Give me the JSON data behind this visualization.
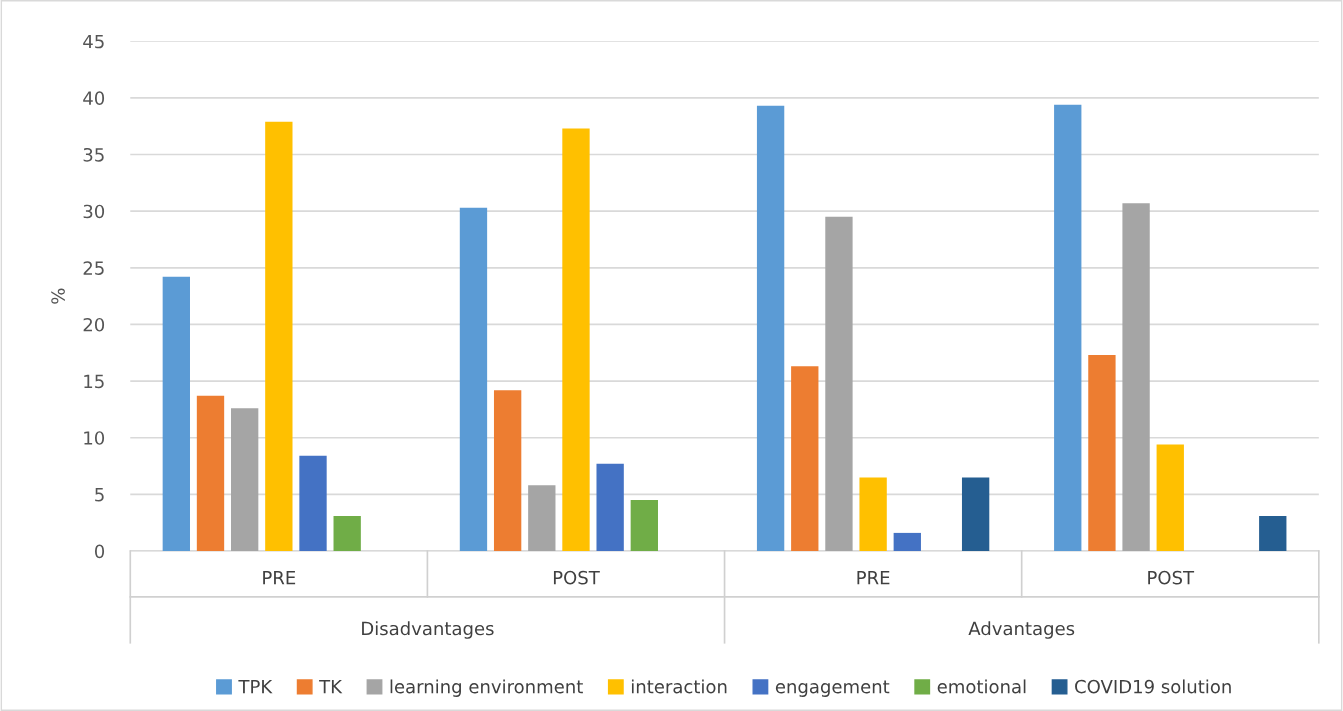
{
  "chart_data": {
    "type": "bar",
    "ylabel": "%",
    "categories": [
      "PRE",
      "POST",
      "PRE",
      "POST"
    ],
    "annotations": [
      "Disadvantages",
      "Advantages"
    ],
    "series": [
      {
        "name": "TPK",
        "color": "#5b9bd5",
        "values": [
          24.2,
          30.3,
          39.3,
          39.4
        ]
      },
      {
        "name": "TK",
        "color": "#ed7d31",
        "values": [
          13.7,
          14.2,
          16.3,
          17.3
        ]
      },
      {
        "name": "learning environment",
        "color": "#a5a5a5",
        "values": [
          12.6,
          5.8,
          29.5,
          30.7
        ]
      },
      {
        "name": "interaction",
        "color": "#ffc000",
        "values": [
          37.9,
          37.3,
          6.5,
          9.4
        ]
      },
      {
        "name": "engagement",
        "color": "#4472c4",
        "values": [
          8.4,
          7.7,
          1.6,
          null
        ]
      },
      {
        "name": "emotional",
        "color": "#70ad47",
        "values": [
          3.1,
          4.5,
          null,
          null
        ]
      },
      {
        "name": "COVID19 solution",
        "color": "#255e91",
        "values": [
          null,
          null,
          6.5,
          3.1
        ]
      }
    ],
    "ylim": [
      0,
      45
    ],
    "yticks": [
      0,
      5,
      10,
      15,
      20,
      25,
      30,
      35,
      40,
      45
    ],
    "grid": "y",
    "legend": "bottom"
  }
}
